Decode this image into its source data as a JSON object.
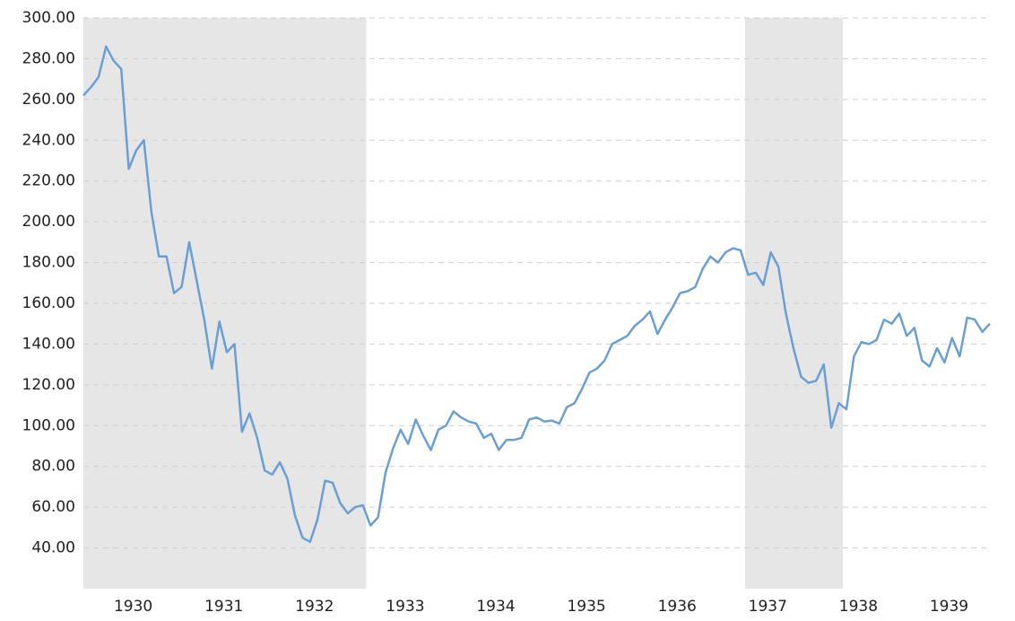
{
  "chart_data": {
    "type": "line",
    "xlim": [
      1929.45,
      1939.45
    ],
    "xticks": [
      1930,
      1931,
      1932,
      1933,
      1934,
      1935,
      1936,
      1937,
      1938,
      1939
    ],
    "ylim": [
      20,
      300
    ],
    "yticks": [
      {
        "value": 40,
        "label": "40.00"
      },
      {
        "value": 60,
        "label": "60.00"
      },
      {
        "value": 80,
        "label": "80.00"
      },
      {
        "value": 100,
        "label": "100.00"
      },
      {
        "value": 120,
        "label": "120.00"
      },
      {
        "value": 140,
        "label": "140.00"
      },
      {
        "value": 160,
        "label": "160.00"
      },
      {
        "value": 180,
        "label": "180.00"
      },
      {
        "value": 200,
        "label": "200.00"
      },
      {
        "value": 220,
        "label": "220.00"
      },
      {
        "value": 240,
        "label": "240.00"
      },
      {
        "value": 260,
        "label": "260.00"
      },
      {
        "value": 280,
        "label": "280.00"
      },
      {
        "value": 300,
        "label": "300.00"
      }
    ],
    "grid": true,
    "color": "#6a9fd6",
    "shade_color": "#e6e6e6",
    "shaded_ranges": [
      [
        1929.45,
        1932.57
      ],
      [
        1936.75,
        1937.83
      ]
    ],
    "x": [
      1929.45,
      1929.533,
      1929.617,
      1929.7,
      1929.783,
      1929.867,
      1929.95,
      1930.033,
      1930.117,
      1930.2,
      1930.283,
      1930.367,
      1930.45,
      1930.533,
      1930.617,
      1930.7,
      1930.783,
      1930.867,
      1930.95,
      1931.033,
      1931.117,
      1931.2,
      1931.283,
      1931.367,
      1931.45,
      1931.533,
      1931.617,
      1931.7,
      1931.783,
      1931.867,
      1931.95,
      1932.033,
      1932.117,
      1932.2,
      1932.283,
      1932.367,
      1932.45,
      1932.533,
      1932.617,
      1932.7,
      1932.783,
      1932.867,
      1932.95,
      1933.033,
      1933.117,
      1933.2,
      1933.283,
      1933.367,
      1933.45,
      1933.533,
      1933.617,
      1933.7,
      1933.783,
      1933.867,
      1933.95,
      1934.033,
      1934.117,
      1934.2,
      1934.283,
      1934.367,
      1934.45,
      1934.533,
      1934.617,
      1934.7,
      1934.783,
      1934.867,
      1934.95,
      1935.033,
      1935.117,
      1935.2,
      1935.283,
      1935.367,
      1935.45,
      1935.533,
      1935.617,
      1935.7,
      1935.783,
      1935.867,
      1935.95,
      1936.033,
      1936.117,
      1936.2,
      1936.283,
      1936.367,
      1936.45,
      1936.533,
      1936.617,
      1936.7,
      1936.783,
      1936.867,
      1936.95,
      1937.033,
      1937.117,
      1937.2,
      1937.283,
      1937.367,
      1937.45,
      1937.533,
      1937.617,
      1937.7,
      1937.783,
      1937.867,
      1937.95,
      1938.033,
      1938.117,
      1938.2,
      1938.283,
      1938.367,
      1938.45,
      1938.533,
      1938.617,
      1938.7,
      1938.783,
      1938.867,
      1938.95,
      1939.033,
      1939.117,
      1939.2,
      1939.283,
      1939.367,
      1939.45
    ],
    "values": [
      262,
      266,
      271,
      286,
      279,
      275,
      226,
      235,
      240,
      205,
      183,
      183,
      165,
      168,
      190,
      171,
      152,
      128,
      151,
      136,
      140,
      97,
      106,
      94,
      78,
      76,
      82,
      74,
      56,
      45,
      43,
      54,
      73,
      72,
      62,
      57,
      60,
      61,
      51,
      55,
      77,
      89,
      98,
      91,
      103,
      95,
      88,
      98,
      100,
      107,
      104,
      102,
      101,
      94,
      96,
      88,
      93,
      93,
      94,
      103,
      104,
      102,
      102.5,
      101,
      109,
      111,
      118,
      126,
      128,
      132,
      140,
      142,
      144,
      149,
      152,
      156,
      145,
      152,
      158,
      165,
      166,
      168,
      177,
      183,
      180,
      185,
      187,
      186,
      174,
      175,
      169,
      185,
      178,
      155,
      138,
      124,
      121,
      122,
      130,
      99,
      111,
      108,
      134,
      141,
      140,
      142,
      152,
      150,
      155,
      144,
      148,
      132,
      129,
      138,
      131,
      143,
      134,
      153,
      152,
      146,
      150
    ]
  }
}
